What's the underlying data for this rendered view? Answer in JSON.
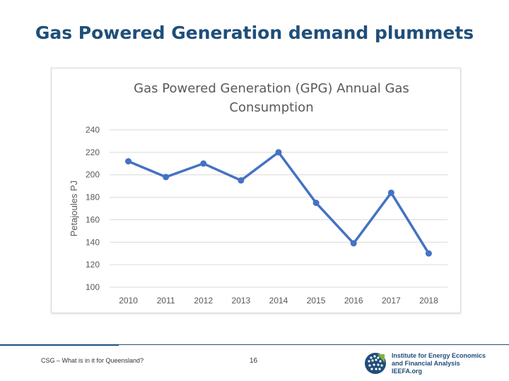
{
  "slide": {
    "title": "Gas Powered Generation demand plummets",
    "footer_text": "CSG – What is in it for Queensland?",
    "page_number": "16"
  },
  "logo": {
    "line1": "Institute for Energy Economics",
    "line2": "and Financial Analysis",
    "line3": "IEEFA.org"
  },
  "colors": {
    "title": "#1f4e79",
    "series": "#4472c4",
    "accent": "#1f4e79"
  },
  "chart_data": {
    "type": "line",
    "title": "Gas Powered Generation (GPG) Annual Gas Consumption",
    "title_lines": [
      "Gas Powered Generation (GPG) Annual Gas",
      "Consumption"
    ],
    "xlabel": "",
    "ylabel": "Petajoules PJ",
    "categories": [
      "2010",
      "2011",
      "2012",
      "2013",
      "2014",
      "2015",
      "2016",
      "2017",
      "2018"
    ],
    "series": [
      {
        "values": [
          212,
          198,
          210,
          195,
          220,
          175,
          139,
          184,
          130
        ]
      }
    ],
    "ylim": [
      100,
      240
    ],
    "yticks": [
      100,
      120,
      140,
      160,
      180,
      200,
      220,
      240
    ],
    "grid": true,
    "legend": false
  }
}
